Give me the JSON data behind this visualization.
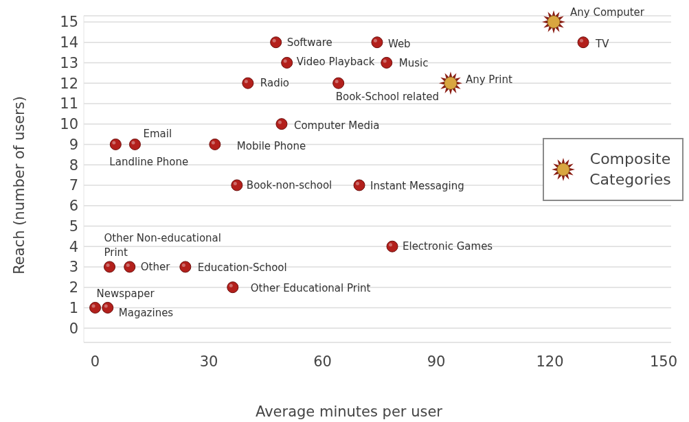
{
  "chart_data": {
    "type": "scatter",
    "xlabel": "Average minutes per user",
    "ylabel": "Reach (number of users)",
    "xlim": [
      -3,
      152
    ],
    "xticks": [
      0,
      30,
      60,
      90,
      120,
      150
    ],
    "ylim": [
      -0.7,
      15.3
    ],
    "yticks": [
      0,
      1,
      2,
      3,
      4,
      5,
      6,
      7,
      8,
      9,
      10,
      11,
      12,
      13,
      14,
      15
    ],
    "grid": "y",
    "legend": "right",
    "series": [
      {
        "color": "#b3201c",
        "marker": "circle",
        "x": [
          128.8,
          47.7,
          74.4,
          50.6,
          76.9,
          40.3,
          64.2,
          49.2,
          10.5,
          5.4,
          31.6,
          37.4,
          69.7,
          78.4,
          3.8,
          9.1,
          23.8,
          36.3,
          0,
          3.3
        ],
        "values": [
          14,
          14,
          14,
          13,
          13,
          12,
          12,
          10,
          9,
          9,
          9,
          7,
          7,
          4,
          3,
          3,
          3,
          2,
          1,
          1
        ]
      },
      {
        "name": "Composite Categories",
        "color": "#d9a640",
        "marker": "star",
        "x": [
          121,
          93.8
        ],
        "values": [
          15,
          12
        ]
      }
    ],
    "annotations": [
      {
        "text": "Any Computer",
        "x": 121,
        "y": 15
      },
      {
        "text": "TV",
        "x": 128.8,
        "y": 14
      },
      {
        "text": "Software",
        "x": 47.7,
        "y": 14
      },
      {
        "text": "Web",
        "x": 74.4,
        "y": 14
      },
      {
        "text": "Video Playback",
        "x": 50.6,
        "y": 13
      },
      {
        "text": "Music",
        "x": 76.9,
        "y": 13
      },
      {
        "text": "Radio",
        "x": 40.3,
        "y": 12
      },
      {
        "text": "Book-School related",
        "x": 64.2,
        "y": 12
      },
      {
        "text": "Any Print",
        "x": 93.8,
        "y": 12
      },
      {
        "text": "Computer Media",
        "x": 49.2,
        "y": 10
      },
      {
        "text": "Email",
        "x": 10.5,
        "y": 9
      },
      {
        "text": "Landline Phone",
        "x": 5.4,
        "y": 9
      },
      {
        "text": "Mobile Phone",
        "x": 31.6,
        "y": 9
      },
      {
        "text": "Book-non-school",
        "x": 37.4,
        "y": 7
      },
      {
        "text": "Instant Messaging",
        "x": 69.7,
        "y": 7
      },
      {
        "text": "Electronic Games",
        "x": 78.4,
        "y": 4
      },
      {
        "text": "Other Non-educational Print",
        "x": 3.8,
        "y": 3
      },
      {
        "text": "Other",
        "x": 9.1,
        "y": 3
      },
      {
        "text": "Education-School",
        "x": 23.8,
        "y": 3
      },
      {
        "text": "Other Educational Print",
        "x": 36.3,
        "y": 2
      },
      {
        "text": "Newspaper",
        "x": 0,
        "y": 1
      },
      {
        "text": "Magazines",
        "x": 3.3,
        "y": 1
      }
    ]
  }
}
